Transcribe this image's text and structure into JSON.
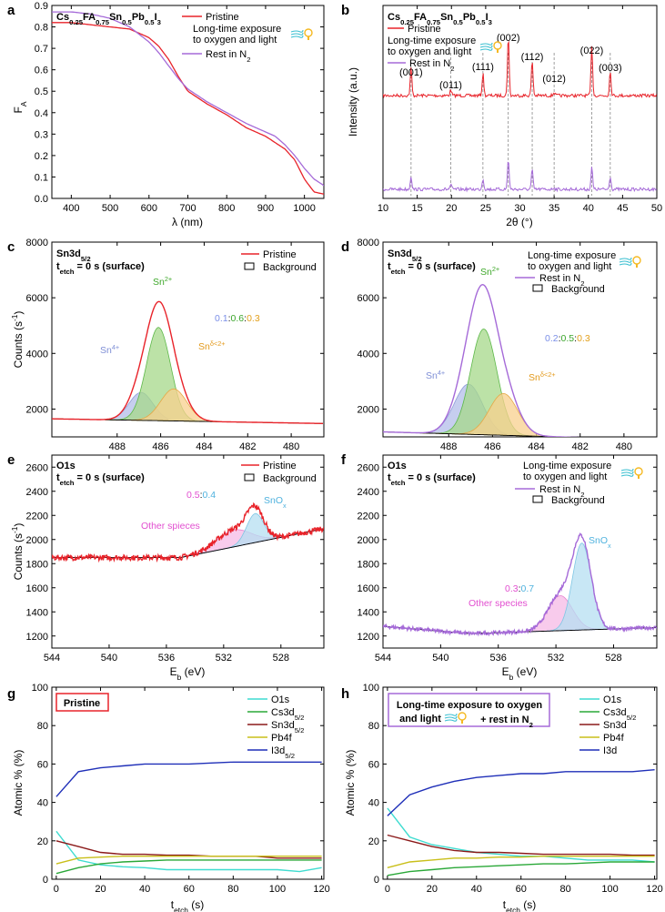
{
  "colors": {
    "pristine": "#e8232a",
    "rest": "#a56ad8",
    "sn4": "#b3bde9",
    "sn2": "#a5d88a",
    "snd": "#f8d08e",
    "other": "#f6b9e6",
    "snox": "#b5dff2",
    "o1s": "#3fdcd0",
    "cs": "#2aa838",
    "sn3d": "#8b1a1a",
    "pb4f": "#c9bf1a",
    "i3d": "#1f2fb8",
    "icon_wind": "#39bfd0",
    "icon_bulb": "#f5b922"
  },
  "chart_data": [
    {
      "panel": "a",
      "type": "line",
      "title": "Cs0.25FA0.75Sn0.5Pb0.5I3",
      "xlabel": "λ (nm)",
      "ylabel": "FA",
      "xlim": [
        350,
        1050
      ],
      "ylim": [
        0,
        0.9
      ],
      "xticks": [
        "400",
        "500",
        "600",
        "700",
        "800",
        "900",
        "1000"
      ],
      "yticks": [
        "0.0",
        "0.1",
        "0.2",
        "0.3",
        "0.4",
        "0.5",
        "0.6",
        "0.7",
        "0.8",
        "0.9"
      ],
      "legend": [
        "Pristine",
        "Long-time exposure to oxygen and light",
        "Rest in N2"
      ],
      "series": [
        {
          "name": "Pristine",
          "x": [
            350,
            400,
            450,
            500,
            550,
            600,
            625,
            650,
            675,
            700,
            750,
            800,
            850,
            875,
            900,
            925,
            950,
            975,
            1000,
            1025,
            1050
          ],
          "y": [
            0.82,
            0.82,
            0.81,
            0.8,
            0.79,
            0.75,
            0.71,
            0.65,
            0.57,
            0.5,
            0.44,
            0.39,
            0.33,
            0.31,
            0.29,
            0.26,
            0.23,
            0.18,
            0.09,
            0.03,
            0.02
          ]
        },
        {
          "name": "Rest in N2",
          "x": [
            350,
            400,
            450,
            500,
            550,
            600,
            625,
            650,
            675,
            700,
            750,
            800,
            850,
            875,
            900,
            925,
            950,
            975,
            1000,
            1025,
            1050
          ],
          "y": [
            0.87,
            0.87,
            0.86,
            0.84,
            0.8,
            0.73,
            0.68,
            0.62,
            0.56,
            0.51,
            0.45,
            0.4,
            0.35,
            0.33,
            0.31,
            0.29,
            0.25,
            0.2,
            0.14,
            0.09,
            0.06
          ]
        }
      ]
    },
    {
      "panel": "b",
      "type": "line",
      "title": "Cs0.25FA0.75Sn0.5Pb0.5I3",
      "xlabel": "2θ (°)",
      "ylabel": "Intensity (a.u.)",
      "xlim": [
        10,
        50
      ],
      "xticks": [
        "10",
        "15",
        "20",
        "25",
        "30",
        "35",
        "40",
        "45",
        "50"
      ],
      "legend": [
        "Pristine",
        "Long-time exposure to oxygen and light",
        "Rest in N2"
      ],
      "peaks": [
        {
          "label": "(001)",
          "x": 14.1,
          "top": 0.25,
          "bottom": 0.12
        },
        {
          "label": "(011)",
          "x": 19.9,
          "top": 0.05,
          "bottom": 0.04
        },
        {
          "label": "(111)",
          "x": 24.6,
          "top": 0.2,
          "bottom": 0.1
        },
        {
          "label": "(002)",
          "x": 28.3,
          "top": 0.55,
          "bottom": 0.28
        },
        {
          "label": "(112)",
          "x": 31.8,
          "top": 0.32,
          "bottom": 0.18
        },
        {
          "label": "(012)",
          "x": 35.0,
          "top": 0.03,
          "bottom": 0.02
        },
        {
          "label": "(022)",
          "x": 40.5,
          "top": 0.45,
          "bottom": 0.2
        },
        {
          "label": "(003)",
          "x": 43.2,
          "top": 0.22,
          "bottom": 0.12
        }
      ]
    },
    {
      "panel": "c",
      "type": "line",
      "title": "Sn3d5/2",
      "subtitle": "tetch = 0 s (surface)",
      "xlabel": "",
      "ylabel": "Counts (s-1)",
      "xlim": [
        491,
        478.5
      ],
      "ylim": [
        1000,
        8000
      ],
      "xticks": [
        "488",
        "486",
        "484",
        "482",
        "480"
      ],
      "yticks": [
        "2000",
        "4000",
        "6000",
        "8000"
      ],
      "legend": [
        "Pristine",
        "Background"
      ],
      "background": {
        "x": [
          491,
          478.5
        ],
        "y": [
          1650,
          1480
        ]
      },
      "components": [
        {
          "name": "Sn4+",
          "center": 486.9,
          "amp": 1000,
          "width": 0.55
        },
        {
          "name": "Sn2+",
          "center": 486.1,
          "amp": 3350,
          "width": 0.55
        },
        {
          "name": "Snδ<2+",
          "center": 485.4,
          "amp": 1150,
          "width": 0.6
        }
      ],
      "ratio": [
        "0.1",
        "0.6",
        "0.3"
      ]
    },
    {
      "panel": "d",
      "type": "line",
      "title": "Sn3d5/2",
      "subtitle": "tetch = 0 s (surface)",
      "xlabel": "",
      "ylabel": "",
      "xlim": [
        491,
        478.5
      ],
      "ylim": [
        1000,
        8000
      ],
      "xticks": [
        "488",
        "486",
        "484",
        "482",
        "480"
      ],
      "yticks": [
        "2000",
        "4000",
        "6000",
        "8000"
      ],
      "legend": [
        "Long-time exposure to oxygen and light",
        "Rest in N2",
        "Background"
      ],
      "background": {
        "x": [
          491,
          478.5
        ],
        "y": [
          1180,
          900
        ]
      },
      "components": [
        {
          "name": "Sn4+",
          "center": 487.1,
          "amp": 1800,
          "width": 0.65
        },
        {
          "name": "Sn2+",
          "center": 486.4,
          "amp": 3800,
          "width": 0.6
        },
        {
          "name": "Snδ<2+",
          "center": 485.5,
          "amp": 1500,
          "width": 0.65
        }
      ],
      "ratio": [
        "0.2",
        "0.5",
        "0.3"
      ]
    },
    {
      "panel": "e",
      "type": "line",
      "title": "O1s",
      "subtitle": "tetch = 0 s (surface)",
      "xlabel": "Eb (eV)",
      "ylabel": "Counts (s-1)",
      "xlim": [
        544,
        525
      ],
      "ylim": [
        1100,
        2700
      ],
      "xticks": [
        "544",
        "540",
        "536",
        "532",
        "528"
      ],
      "yticks": [
        "1200",
        "1400",
        "1600",
        "1800",
        "2000",
        "2200",
        "2400",
        "2600"
      ],
      "legend": [
        "Pristine",
        "Background"
      ],
      "background": {
        "x": [
          544,
          535,
          525
        ],
        "y": [
          1850,
          1850,
          2090
        ]
      },
      "components": [
        {
          "name": "Other spieces",
          "center": 531.3,
          "amp": 140,
          "width": 1.2
        },
        {
          "name": "SnOx",
          "center": 529.8,
          "amp": 240,
          "width": 0.6
        }
      ],
      "ratio": [
        "0.5",
        "0.4"
      ]
    },
    {
      "panel": "f",
      "type": "line",
      "title": "O1s",
      "subtitle": "tetch = 0 s (surface)",
      "xlabel": "Eb (eV)",
      "ylabel": "",
      "xlim": [
        544,
        525
      ],
      "ylim": [
        1100,
        2700
      ],
      "xticks": [
        "544",
        "540",
        "536",
        "532",
        "528"
      ],
      "yticks": [
        "1200",
        "1400",
        "1600",
        "1800",
        "2000",
        "2200",
        "2400",
        "2600"
      ],
      "legend": [
        "Long-time exposure to oxygen and light",
        "Rest in N2",
        "Background"
      ],
      "background": {
        "x": [
          544,
          538,
          525
        ],
        "y": [
          1280,
          1220,
          1270
        ]
      },
      "components": [
        {
          "name": "Other species",
          "center": 531.7,
          "amp": 290,
          "width": 0.85
        },
        {
          "name": "SnOx",
          "center": 530.2,
          "amp": 720,
          "width": 0.65
        }
      ],
      "ratio": [
        "0.3",
        "0.7"
      ]
    },
    {
      "panel": "g",
      "type": "line",
      "title": "Pristine",
      "xlabel": "tetch (s)",
      "ylabel": "Atomic % (%)",
      "xlim": [
        -2,
        121
      ],
      "ylim": [
        0,
        100
      ],
      "xticks": [
        "0",
        "20",
        "40",
        "60",
        "80",
        "100",
        "120"
      ],
      "yticks": [
        "0",
        "20",
        "40",
        "60",
        "80",
        "100"
      ],
      "x": [
        0,
        10,
        20,
        30,
        40,
        50,
        60,
        70,
        80,
        90,
        100,
        110,
        120
      ],
      "series": [
        {
          "name": "O1s",
          "key": "o1s",
          "values": [
            25,
            10,
            7.5,
            6.5,
            6,
            5,
            5,
            5,
            5,
            5,
            5,
            4,
            6
          ]
        },
        {
          "name": "Cs3d5/2",
          "key": "cs",
          "values": [
            3,
            6,
            8,
            9,
            9.5,
            10,
            10,
            10,
            10,
            10,
            10,
            10,
            10
          ]
        },
        {
          "name": "Sn3d5/2",
          "key": "sn3d",
          "values": [
            20,
            17,
            14,
            13,
            13,
            12.5,
            12.5,
            12,
            12,
            12,
            11,
            11,
            11
          ]
        },
        {
          "name": "Pb4f",
          "key": "pb4f",
          "values": [
            8,
            11,
            11.5,
            12,
            12,
            12,
            12,
            12,
            12,
            12,
            12,
            12,
            12
          ]
        },
        {
          "name": "I3d5/2",
          "key": "i3d",
          "values": [
            43,
            56,
            58,
            59,
            60,
            60,
            60,
            60.5,
            61,
            61,
            61,
            61,
            61
          ]
        }
      ]
    },
    {
      "panel": "h",
      "type": "line",
      "title": "Long-time exposure to oxygen and light + rest in N2",
      "xlabel": "tetch (s)",
      "ylabel": "Atomic % (%)",
      "xlim": [
        -2,
        121
      ],
      "ylim": [
        0,
        100
      ],
      "xticks": [
        "0",
        "20",
        "40",
        "60",
        "80",
        "100",
        "120"
      ],
      "yticks": [
        "0",
        "20",
        "40",
        "60",
        "80",
        "100"
      ],
      "x": [
        0,
        10,
        20,
        30,
        40,
        50,
        60,
        70,
        80,
        90,
        100,
        110,
        120
      ],
      "series": [
        {
          "name": "O1s",
          "key": "o1s",
          "values": [
            37,
            22,
            18,
            16,
            14,
            13,
            12,
            12,
            11,
            10,
            10,
            10,
            9
          ]
        },
        {
          "name": "Cs3d5/2",
          "key": "cs",
          "values": [
            2,
            4,
            5,
            6,
            6.5,
            7,
            7.5,
            8,
            8,
            8.5,
            9,
            9,
            9
          ]
        },
        {
          "name": "Sn3d",
          "key": "sn3d",
          "values": [
            23,
            20,
            17,
            15,
            14,
            14,
            13.5,
            13,
            13,
            13,
            13,
            12.5,
            12.5
          ]
        },
        {
          "name": "Pb4f",
          "key": "pb4f",
          "values": [
            6,
            9,
            10,
            11,
            11,
            11.5,
            11.5,
            12,
            12,
            12,
            12,
            12,
            12
          ]
        },
        {
          "name": "I3d",
          "key": "i3d",
          "values": [
            33,
            44,
            48,
            51,
            53,
            54,
            55,
            55,
            56,
            56,
            56,
            56,
            57
          ]
        }
      ]
    }
  ]
}
